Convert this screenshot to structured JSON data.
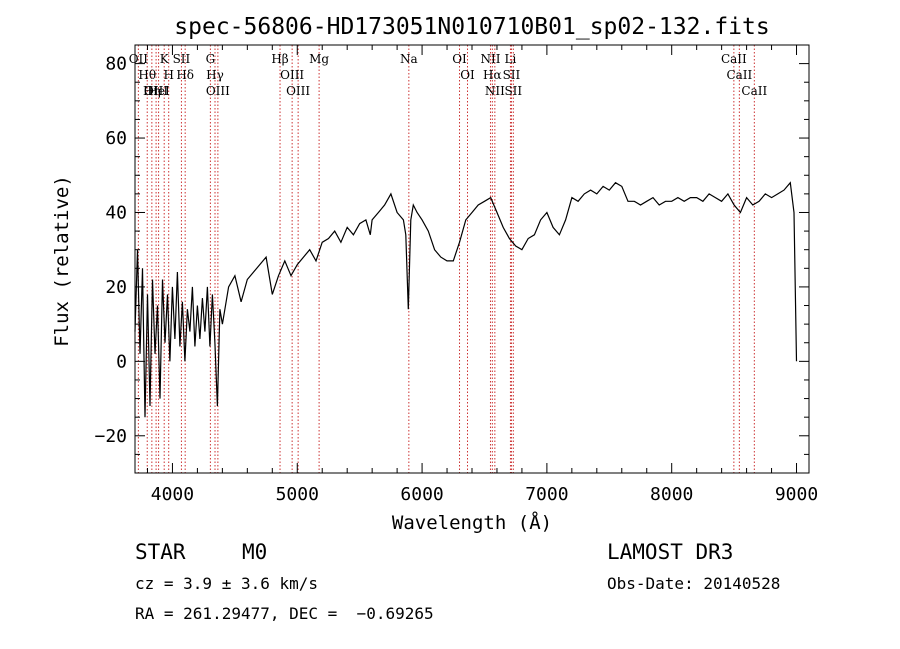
{
  "chart_data": {
    "type": "line",
    "title": "spec-56806-HD173051N010710B01_sp02-132.fits",
    "xlabel": "Wavelength (Å)",
    "ylabel": "Flux (relative)",
    "xlim": [
      3700,
      9100
    ],
    "ylim": [
      -30,
      85
    ],
    "xticks": [
      4000,
      5000,
      6000,
      7000,
      8000,
      9000
    ],
    "yticks": [
      -20,
      0,
      20,
      40,
      60,
      80
    ],
    "ytick_labels": [
      "−20",
      "0",
      "20",
      "40",
      "60",
      "80"
    ],
    "grid": false,
    "line_color": "#000000",
    "marker_color": "#cc3333",
    "series": [
      {
        "x": [
          3700,
          3720,
          3740,
          3760,
          3780,
          3800,
          3820,
          3840,
          3860,
          3880,
          3900,
          3920,
          3940,
          3960,
          3980,
          4000,
          4020,
          4040,
          4060,
          4080,
          4100,
          4120,
          4140,
          4160,
          4180,
          4200,
          4220,
          4240,
          4260,
          4280,
          4300,
          4320,
          4340,
          4360,
          4380,
          4400,
          4450,
          4500,
          4550,
          4600,
          4650,
          4700,
          4750,
          4800,
          4850,
          4900,
          4950,
          5000,
          5050,
          5100,
          5150,
          5200,
          5250,
          5300,
          5350,
          5400,
          5450,
          5500,
          5550,
          5585,
          5600,
          5650,
          5700,
          5750,
          5800,
          5850,
          5870,
          5890,
          5910,
          5930,
          5960,
          6000,
          6050,
          6100,
          6150,
          6200,
          6250,
          6300,
          6350,
          6400,
          6450,
          6500,
          6550,
          6600,
          6650,
          6700,
          6750,
          6800,
          6850,
          6900,
          6950,
          7000,
          7050,
          7100,
          7150,
          7200,
          7250,
          7300,
          7350,
          7400,
          7450,
          7500,
          7550,
          7600,
          7650,
          7700,
          7750,
          7800,
          7850,
          7900,
          7950,
          8000,
          8050,
          8100,
          8150,
          8200,
          8250,
          8300,
          8350,
          8400,
          8450,
          8500,
          8550,
          8600,
          8650,
          8700,
          8750,
          8800,
          8850,
          8900,
          8950,
          8980,
          9000
        ],
        "y": [
          8,
          30,
          2,
          25,
          -15,
          18,
          -12,
          22,
          2,
          15,
          -10,
          22,
          5,
          18,
          0,
          20,
          6,
          24,
          4,
          16,
          0,
          14,
          8,
          20,
          4,
          15,
          6,
          17,
          8,
          20,
          4,
          18,
          5,
          -12,
          14,
          10,
          20,
          23,
          16,
          22,
          24,
          26,
          28,
          18,
          23,
          27,
          23,
          26,
          28,
          30,
          27,
          32,
          33,
          35,
          32,
          36,
          34,
          37,
          38,
          34,
          38,
          40,
          42,
          45,
          40,
          38,
          34,
          14,
          38,
          42,
          40,
          38,
          35,
          30,
          28,
          27,
          27,
          32,
          38,
          40,
          42,
          43,
          44,
          40,
          36,
          33,
          31,
          30,
          33,
          34,
          38,
          40,
          36,
          34,
          38,
          44,
          43,
          45,
          46,
          45,
          47,
          46,
          48,
          47,
          43,
          43,
          42,
          43,
          44,
          42,
          43,
          43,
          44,
          43,
          44,
          44,
          43,
          45,
          44,
          43,
          45,
          42,
          40,
          44,
          42,
          43,
          45,
          44,
          45,
          46,
          48,
          40,
          0
        ]
      }
    ],
    "markers": [
      {
        "x": 3727,
        "labels": [
          "OII"
        ]
      },
      {
        "x": 3798,
        "labels": [
          "Hθ"
        ]
      },
      {
        "x": 3835,
        "labels": [
          "Hη"
        ]
      },
      {
        "x": 3869,
        "labels": [
          "OIII"
        ]
      },
      {
        "x": 3889,
        "labels": [
          "HeI"
        ]
      },
      {
        "x": 3934,
        "labels": [
          "K"
        ]
      },
      {
        "x": 3970,
        "labels": [
          "H"
        ]
      },
      {
        "x": 4072,
        "labels": [
          "SII"
        ]
      },
      {
        "x": 4102,
        "labels": [
          "Hδ"
        ]
      },
      {
        "x": 4304,
        "labels": [
          "G"
        ]
      },
      {
        "x": 4341,
        "labels": [
          "Hγ"
        ]
      },
      {
        "x": 4364,
        "labels": [
          "OIII"
        ]
      },
      {
        "x": 4862,
        "labels": [
          "Hβ"
        ]
      },
      {
        "x": 4959,
        "labels": [
          "OIII"
        ]
      },
      {
        "x": 5007,
        "labels": [
          "OIII"
        ]
      },
      {
        "x": 5175,
        "labels": [
          "Mg"
        ]
      },
      {
        "x": 5894,
        "labels": [
          "Na"
        ]
      },
      {
        "x": 6300,
        "labels": [
          "OI"
        ]
      },
      {
        "x": 6364,
        "labels": [
          "OI"
        ]
      },
      {
        "x": 6548,
        "labels": [
          "NII"
        ]
      },
      {
        "x": 6563,
        "labels": [
          "Hα"
        ]
      },
      {
        "x": 6583,
        "labels": [
          "NII"
        ]
      },
      {
        "x": 6708,
        "labels": [
          "Li"
        ]
      },
      {
        "x": 6716,
        "labels": [
          "SII"
        ]
      },
      {
        "x": 6731,
        "labels": [
          "SII"
        ]
      },
      {
        "x": 8498,
        "labels": [
          "CaII"
        ]
      },
      {
        "x": 8542,
        "labels": [
          "CaII"
        ]
      },
      {
        "x": 8662,
        "labels": [
          "CaII"
        ]
      }
    ]
  },
  "info": {
    "object_class": "STAR",
    "subclass": "M0",
    "survey": "LAMOST DR3",
    "cz": "cz = 3.9 ± 3.6 km/s",
    "obs_date": "Obs-Date: 20140528",
    "coords": "RA = 261.29477, DEC =  −0.69265"
  }
}
